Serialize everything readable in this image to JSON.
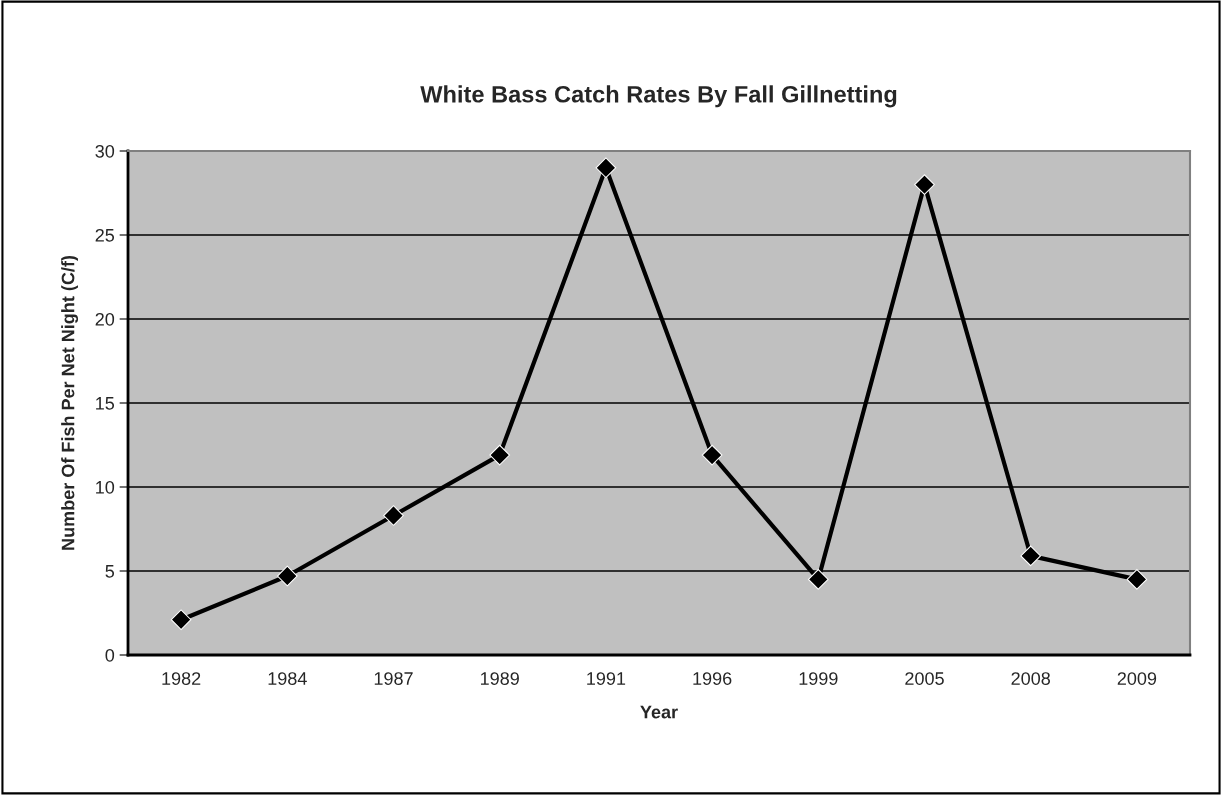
{
  "chart_data": {
    "type": "line",
    "title": "White Bass Catch Rates By Fall Gillnetting",
    "xlabel": "Year",
    "ylabel": "Number Of Fish Per Net Night (C/f)",
    "categories": [
      "1982",
      "1984",
      "1987",
      "1989",
      "1991",
      "1996",
      "1999",
      "2005",
      "2008",
      "2009"
    ],
    "series": [
      {
        "color": "#000000",
        "values": [
          2.1,
          4.7,
          8.3,
          11.9,
          29.0,
          11.9,
          4.5,
          28.0,
          5.9,
          4.5
        ]
      }
    ],
    "ylim": [
      0,
      30
    ],
    "yticks": [
      0,
      5,
      10,
      15,
      20,
      25,
      30
    ],
    "grid": "y",
    "marker": "diamond",
    "line_style": "solid",
    "legend": false
  }
}
